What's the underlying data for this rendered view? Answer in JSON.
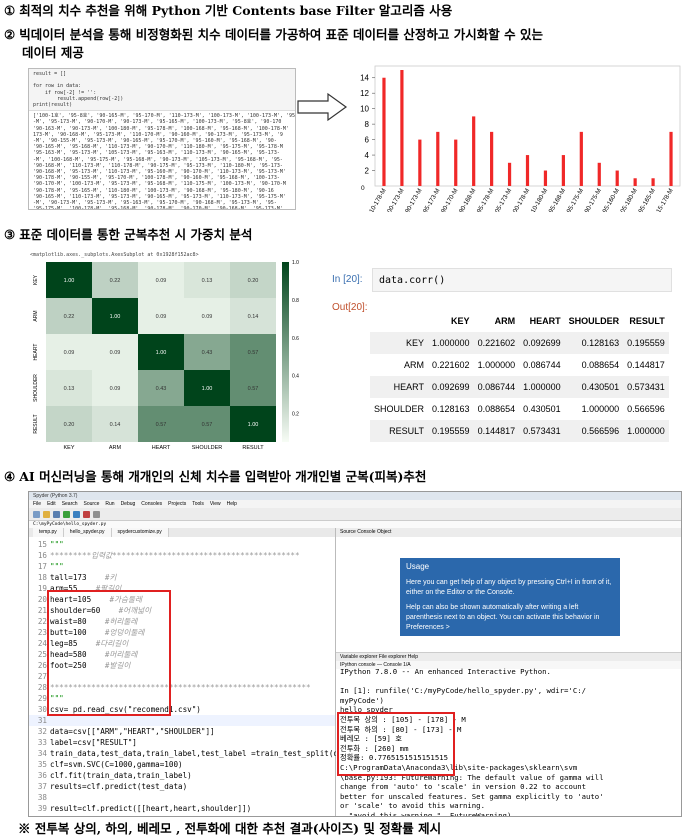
{
  "sections": {
    "s1": {
      "num": "①",
      "text": "최적의 치수 추천을 위해 Python 기반 Contents base Filter 알고리즘 사용"
    },
    "s2": {
      "num": "②",
      "text": "빅데이터 분석을 통해 비정형화된 치수 데이터를 가공하여 표준 데이터를 산정하고 가시화할 수 있는",
      "text2": "데이터 제공"
    },
    "s3": {
      "num": "③",
      "text": "표준 데이터를 통한 군복추천 시 가중치 분석"
    },
    "s4": {
      "num": "④",
      "text": "AI 머신러닝을 통해 개개인의 신체 치수를 입력받아 개개인별 군복(피복)추천"
    }
  },
  "footnote": "※ 전투복 상의, 하의, 베레모 , 전투화에 대한 추천 결과(사이즈) 및 정확률 제시",
  "panel1": {
    "code": [
      "result = []",
      "",
      "for row in data:",
      "    if row[-2] != '':",
      "        result.append(row[-2])",
      "print(result)"
    ],
    "output": [
      "['100-1호', '95-8호', '90-165-M', '95-170-M', '110-173-M', '100-173-M', '100-173-M', '95-",
      "-M', '95-173-M', '90-170-M', '90-173-M', '95-165-M', '100-173-M', '95-8호', '90-170",
      "'90-163-M', '90-173-M', '100-180-M', '95-178-M', '100-168-M', '95-168-M', '100-178-M'",
      "173-M', '90-168-M', '95-173-M', '110-170-M', '90-160-M', '90-173-M', '95-173-M', '9",
      "-M', '90-155-M', '95-173-M', '90-165-M', '95-170-M', '95-160-M', '95-168-M', '90-",
      "'90-165-M', '95-168-M', '110-173-M', '90-170-M', '110-180-M', '95-175-M', '95-178-M",
      "'95-163-M', '95-173-M', '105-173-M', '95-163-M', '110-173-M', '90-165-M', '95-173-",
      "-M', '100-168-M', '95-175-M', '95-168-M', '90-173-M', '105-173-M', '95-168-M', '95-",
      "'90-168-M', '110-173-M', '110-178-M', '90-175-M', '95-173-M', '110-180-M', '95-173-",
      "'90-168-M', '95-173-M', '110-173-M', '95-160-M', '90-170-M', '110-173-M', '95-173-M'",
      "'90-178-M', '90-155-M', '95-170-M', '100-178-M', '90-160-M', '95-168-M', '100-173-",
      "'90-170-M', '100-173-M', '95-173-M', '95-168-M', '110-175-M', '100-173-M', '90-170-M",
      "'90-178-M', '95-165-M', '110-180-M', '100-173-M', '90-168-M', '95-180-M', '90-16",
      "'90-165-M', '110-173-M', '95-173-M', '90-165-M', '95-173-M', '110-173-M', '95-175-M'",
      "-M', '90-173-M', '95-173-M', '95-163-M', '95-170-M', '90-168-M', '95-173-M', '95-",
      "'95-175-M', '100-178-M', '95-168-M', '90-178-M', '90-170-M', '90-168-M', '95-173-M'",
      "-M', '95-165-M', '90-173-M', '95-168-M', '110-180-M', '90-163-M', '110-173-M', '95",
      "'90-178-M', '90-170-M', '100-173-M', '95-160-M', '95-170-M', '90-160-M', '95-173-M'",
      "0-178-M', '115-178-M', '90-170-M', '90-168-M', '90-168-M', '100-173-M', '110-17",
      "', '90-173-M', '110-178-M', '95-178-M', '95-175-M', '90-175-M', '90-170-M', '9",
      "'100-173-M', '95-178-M', '90-173-M', '95-170-M', '110-178-M', '95-173-M', '95-173-",
      "-M', '95-165-M', '95-178-M', '90-173-M', '95-175-M', '90-173-M', '95-170-M', '9",
      "5-165-M', '95-173-M', '115-178-M']"
    ]
  },
  "chart_data": [
    {
      "type": "bar",
      "categories": [
        "110-178-M",
        "100-173-M",
        "90-173-M",
        "95-173-M",
        "90-170-M",
        "90-168-M",
        "95-178-M",
        "105-173-M",
        "100-178-M",
        "110-180-M",
        "95-168-M",
        "95-175-M",
        "90-175-M",
        "95-160-M",
        "105-180-M",
        "95-165-M",
        "115-178-M"
      ],
      "values": [
        14,
        15,
        6,
        7,
        6,
        9,
        7,
        3,
        4,
        2,
        4,
        7,
        3,
        2,
        1,
        1,
        7
      ],
      "ylim": [
        0,
        15
      ],
      "yticks": [
        0,
        2,
        4,
        6,
        8,
        10,
        12,
        14
      ],
      "zero_label": "0",
      "color": "#f02828",
      "grid": false
    },
    {
      "type": "heatmap",
      "header": "<matplotlib.axes._subplots.AxesSubplot at 0x1928f152ac8>",
      "rows": [
        "KEY",
        "ARM",
        "HEART",
        "SHOULDER",
        "RESULT"
      ],
      "cols": [
        "KEY",
        "ARM",
        "HEART",
        "SHOULDER",
        "RESULT"
      ],
      "values": [
        [
          1.0,
          0.22,
          0.09,
          0.13,
          0.2
        ],
        [
          0.22,
          1.0,
          0.09,
          0.09,
          0.14
        ],
        [
          0.09,
          0.09,
          1.0,
          0.43,
          0.57
        ],
        [
          0.13,
          0.09,
          0.43,
          1.0,
          0.57
        ],
        [
          0.2,
          0.14,
          0.57,
          0.57,
          1.0
        ]
      ],
      "colorbar_ticks": [
        "1.0",
        "0.8",
        "0.6",
        "0.4",
        "0.2"
      ]
    },
    {
      "type": "table",
      "in_prompt": "In [20]:",
      "code": "data.corr()",
      "out_prompt": "Out[20]:",
      "columns": [
        "KEY",
        "ARM",
        "HEART",
        "SHOULDER",
        "RESULT"
      ],
      "rows": [
        {
          "name": "KEY",
          "values": [
            "1.000000",
            "0.221602",
            "0.092699",
            "0.128163",
            "0.195559"
          ]
        },
        {
          "name": "ARM",
          "values": [
            "0.221602",
            "1.000000",
            "0.086744",
            "0.088654",
            "0.144817"
          ]
        },
        {
          "name": "HEART",
          "values": [
            "0.092699",
            "0.086744",
            "1.000000",
            "0.430501",
            "0.573431"
          ]
        },
        {
          "name": "SHOULDER",
          "values": [
            "0.128163",
            "0.088654",
            "0.430501",
            "1.000000",
            "0.566596"
          ]
        },
        {
          "name": "RESULT",
          "values": [
            "0.195559",
            "0.144817",
            "0.573431",
            "0.566596",
            "1.000000"
          ]
        }
      ]
    }
  ],
  "ide": {
    "title": "Spyder (Python 3.7)",
    "menu": [
      "File",
      "Edit",
      "Search",
      "Source",
      "Run",
      "Debug",
      "Consoles",
      "Projects",
      "Tools",
      "View",
      "Help"
    ],
    "path": "C:\\myPyCode\\hello_spyder.py",
    "tabs": [
      "temp.py",
      "hello_spyder.py",
      "spydercustomize.py"
    ],
    "lines": [
      {
        "n": "15",
        "t": "\"\"\"",
        "c": "str"
      },
      {
        "n": "16",
        "t": "*********입력값*****************************************",
        "c": "cm"
      },
      {
        "n": "17",
        "t": "\"\"\"",
        "c": "str"
      },
      {
        "n": "18",
        "t": "tall=173",
        "cm": "#키"
      },
      {
        "n": "19",
        "t": "arm=55",
        "cm": "#팔길이"
      },
      {
        "n": "20",
        "t": "heart=105",
        "cm": "#가슴둘레"
      },
      {
        "n": "21",
        "t": "shoulder=60",
        "cm": "#어깨넓이"
      },
      {
        "n": "22",
        "t": "waist=80",
        "cm": "#허리둘레"
      },
      {
        "n": "23",
        "t": "butt=100",
        "cm": "#엉덩이둘레"
      },
      {
        "n": "24",
        "t": "leg=85",
        "cm": "#다리길이"
      },
      {
        "n": "25",
        "t": "head=580",
        "cm": "#머리둘레"
      },
      {
        "n": "26",
        "t": "foot=250",
        "cm": "#발길이"
      },
      {
        "n": "27",
        "t": "",
        "c": ""
      },
      {
        "n": "28",
        "t": "*********************************************************",
        "c": "cm"
      },
      {
        "n": "29",
        "t": "\"\"\"",
        "c": "str"
      },
      {
        "n": "30",
        "t": "csv= pd.read_csv(\"recomend1.csv\")",
        "c": ""
      },
      {
        "n": "31",
        "t": "",
        "c": "",
        "hl": true
      },
      {
        "n": "32",
        "t": "data=csv[[\"ARM\",\"HEART\",\"SHOULDER\"]]",
        "c": ""
      },
      {
        "n": "33",
        "t": "label=csv[\"RESULT\"]",
        "c": ""
      },
      {
        "n": "34",
        "t": "train_data,test_data,train_label,test_label =train_test_split(data",
        "c": ""
      },
      {
        "n": "35",
        "t": "clf=svm.SVC(C=1000,gamma=100)",
        "c": ""
      },
      {
        "n": "36",
        "t": "clf.fit(train_data,train_label)",
        "c": ""
      },
      {
        "n": "37",
        "t": "results=clf.predict(test_data)",
        "c": ""
      },
      {
        "n": "38",
        "t": "",
        "c": ""
      },
      {
        "n": "39",
        "t": "result=clf.predict([[heart,heart,shoulder]])",
        "c": ""
      },
      {
        "n": "40",
        "t": "#print(result)",
        "c": "cm"
      },
      {
        "n": "41",
        "t": "csv1= pd.read_csv(\"recomend1.csv\")",
        "c": ""
      },
      {
        "n": "42",
        "t": "data1=csv1[[\"KEY\",\"ARM\",\"HEART\",\"SHOULDER\"]]",
        "c": ""
      },
      {
        "n": "43",
        "t": "label1=csv1[\"RESULT1\"]",
        "c": ""
      }
    ],
    "right_tabs": [
      "Source",
      "Console",
      "Object"
    ],
    "help": {
      "heading": "Usage",
      "p1": "Here you can get help of any object by pressing Ctrl+I in front of it, either on the Editor or the Console.",
      "p2": "Help can also be shown automatically after writing a left parenthesis next to an object. You can activate this behavior in Preferences >"
    },
    "console_tabs": "Variable explorer   File explorer   Help",
    "console_title": "IPython console",
    "console_sub": "Console 1/A",
    "console": [
      "IPython 7.8.0 -- An enhanced Interactive Python.",
      "",
      "In [1]: runfile('C:/myPyCode/hello_spyder.py', wdir='C:/",
      "myPyCode')",
      "hello spyder",
      "전투복 상의 : [105] - [178] - M",
      "전투복 하의 : [80] - [173] - M",
      "베레모 : [59] 호",
      "전투화 : [260] mm",
      "정확률: 0.7765151515151515",
      "C:\\ProgramData\\Anaconda3\\lib\\site-packages\\sklearn\\svm",
      "\\base.py:193: FutureWarning: The default value of gamma will",
      "change from 'auto' to 'scale' in version 0.22 to account",
      "better for unscaled features. Set gamma explicitly to 'auto'",
      "or 'scale' to avoid this warning.",
      "  \"avoid this warning.\", FutureWarning)",
      "C:\\ProgramData\\Anaconda3\\lib\\site-packages\\sklearn\\svm"
    ]
  }
}
